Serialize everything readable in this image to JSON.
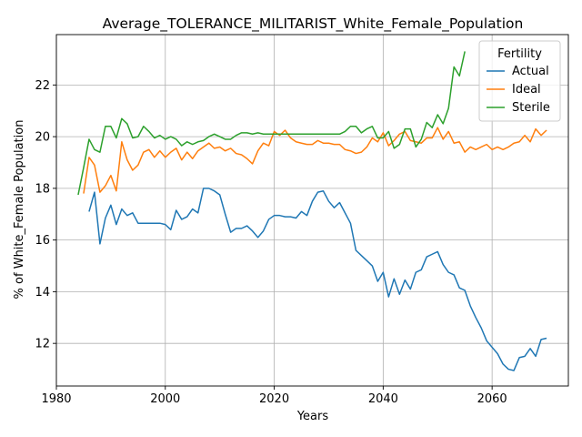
{
  "chart_data": {
    "type": "line",
    "title": "Average_TOLERANCE_MILITARIST_White_Female_Population",
    "xlabel": "Years",
    "ylabel": "% of White_Female Population",
    "xlim": [
      1980,
      2074
    ],
    "ylim": [
      10.35,
      23.95
    ],
    "xticks": [
      1980,
      2000,
      2020,
      2040,
      2060
    ],
    "yticks": [
      12,
      14,
      16,
      18,
      20,
      22
    ],
    "grid": true,
    "legend": {
      "title": "Fertility",
      "placement": "top-right"
    },
    "series": [
      {
        "name": "Actual",
        "color": "#1f77b4",
        "x": [
          1986,
          1987,
          1988,
          1989,
          1990,
          1991,
          1992,
          1993,
          1994,
          1995,
          1996,
          1997,
          1998,
          1999,
          2000,
          2001,
          2002,
          2003,
          2004,
          2005,
          2006,
          2007,
          2008,
          2009,
          2010,
          2011,
          2012,
          2013,
          2014,
          2015,
          2016,
          2017,
          2018,
          2019,
          2020,
          2021,
          2022,
          2023,
          2024,
          2025,
          2026,
          2027,
          2028,
          2029,
          2030,
          2031,
          2032,
          2033,
          2034,
          2035,
          2036,
          2037,
          2038,
          2039,
          2040,
          2041,
          2042,
          2043,
          2044,
          2045,
          2046,
          2047,
          2048,
          2049,
          2050,
          2051,
          2052,
          2053,
          2054,
          2055,
          2056,
          2057,
          2058,
          2059,
          2060,
          2061,
          2062,
          2063,
          2064,
          2065,
          2066,
          2067,
          2068,
          2069,
          2070
        ],
        "values": [
          17.1,
          17.85,
          15.85,
          16.85,
          17.35,
          16.6,
          17.2,
          16.95,
          17.05,
          16.65,
          16.65,
          16.65,
          16.65,
          16.65,
          16.6,
          16.4,
          17.15,
          16.8,
          16.9,
          17.2,
          17.05,
          18.0,
          18.0,
          17.9,
          17.75,
          17.0,
          16.3,
          16.45,
          16.45,
          16.55,
          16.35,
          16.1,
          16.35,
          16.8,
          16.95,
          16.95,
          16.9,
          16.9,
          16.85,
          17.1,
          16.95,
          17.5,
          17.85,
          17.9,
          17.5,
          17.25,
          17.45,
          17.05,
          16.65,
          15.6,
          15.4,
          15.2,
          15.0,
          14.4,
          14.75,
          13.8,
          14.5,
          13.9,
          14.45,
          14.1,
          14.75,
          14.85,
          15.35,
          15.45,
          15.55,
          15.05,
          14.75,
          14.65,
          14.15,
          14.05,
          13.45,
          13.0,
          12.6,
          12.1,
          11.85,
          11.6,
          11.2,
          11.0,
          10.95,
          11.45,
          11.5,
          11.8,
          11.5,
          12.15,
          12.2
        ]
      },
      {
        "name": "Ideal",
        "color": "#ff7f0e",
        "x": [
          1985,
          1986,
          1987,
          1988,
          1989,
          1990,
          1991,
          1992,
          1993,
          1994,
          1995,
          1996,
          1997,
          1998,
          1999,
          2000,
          2001,
          2002,
          2003,
          2004,
          2005,
          2006,
          2007,
          2008,
          2009,
          2010,
          2011,
          2012,
          2013,
          2014,
          2015,
          2016,
          2017,
          2018,
          2019,
          2020,
          2021,
          2022,
          2023,
          2024,
          2025,
          2026,
          2027,
          2028,
          2029,
          2030,
          2031,
          2032,
          2033,
          2034,
          2035,
          2036,
          2037,
          2038,
          2039,
          2040,
          2041,
          2042,
          2043,
          2044,
          2045,
          2046,
          2047,
          2048,
          2049,
          2050,
          2051,
          2052,
          2053,
          2054,
          2055,
          2056,
          2057,
          2058,
          2059,
          2060,
          2061,
          2062,
          2063,
          2064,
          2065,
          2066,
          2067,
          2068,
          2069,
          2070
        ],
        "values": [
          17.8,
          19.2,
          18.9,
          17.85,
          18.1,
          18.5,
          17.9,
          19.8,
          19.1,
          18.7,
          18.9,
          19.4,
          19.5,
          19.2,
          19.45,
          19.2,
          19.4,
          19.55,
          19.1,
          19.4,
          19.15,
          19.45,
          19.6,
          19.75,
          19.55,
          19.6,
          19.45,
          19.55,
          19.35,
          19.3,
          19.15,
          18.95,
          19.45,
          19.75,
          19.65,
          20.2,
          20.05,
          20.25,
          19.95,
          19.8,
          19.75,
          19.7,
          19.7,
          19.85,
          19.75,
          19.75,
          19.7,
          19.7,
          19.5,
          19.45,
          19.35,
          19.4,
          19.6,
          19.95,
          19.8,
          20.15,
          19.65,
          19.85,
          20.1,
          20.2,
          19.85,
          19.8,
          19.75,
          19.95,
          19.95,
          20.35,
          19.9,
          20.2,
          19.75,
          19.8,
          19.4,
          19.6,
          19.5,
          19.6,
          19.7,
          19.5,
          19.6,
          19.5,
          19.6,
          19.75,
          19.8,
          20.05,
          19.8,
          20.3,
          20.05,
          20.25
        ]
      },
      {
        "name": "Sterile",
        "color": "#2ca02c",
        "x": [
          1984,
          1985,
          1986,
          1987,
          1988,
          1989,
          1990,
          1991,
          1992,
          1993,
          1994,
          1995,
          1996,
          1997,
          1998,
          1999,
          2000,
          2001,
          2002,
          2003,
          2004,
          2005,
          2006,
          2007,
          2008,
          2009,
          2010,
          2011,
          2012,
          2013,
          2014,
          2015,
          2016,
          2017,
          2018,
          2019,
          2020,
          2021,
          2022,
          2023,
          2024,
          2025,
          2026,
          2027,
          2028,
          2029,
          2030,
          2031,
          2032,
          2033,
          2034,
          2035,
          2036,
          2037,
          2038,
          2039,
          2040,
          2041,
          2042,
          2043,
          2044,
          2045,
          2046,
          2047,
          2048,
          2049,
          2050,
          2051,
          2052,
          2053,
          2054,
          2055
        ],
        "values": [
          17.75,
          18.8,
          19.9,
          19.5,
          19.4,
          20.4,
          20.4,
          19.95,
          20.7,
          20.5,
          19.95,
          20.0,
          20.4,
          20.2,
          19.95,
          20.05,
          19.9,
          20.0,
          19.9,
          19.65,
          19.8,
          19.7,
          19.8,
          19.85,
          20.0,
          20.1,
          20.0,
          19.9,
          19.9,
          20.05,
          20.15,
          20.15,
          20.1,
          20.15,
          20.1,
          20.1,
          20.1,
          20.1,
          20.1,
          20.1,
          20.1,
          20.1,
          20.1,
          20.1,
          20.1,
          20.1,
          20.1,
          20.1,
          20.1,
          20.2,
          20.4,
          20.4,
          20.15,
          20.3,
          20.4,
          19.95,
          19.95,
          20.2,
          19.55,
          19.7,
          20.3,
          20.3,
          19.6,
          19.9,
          20.55,
          20.35,
          20.85,
          20.5,
          21.1,
          22.7,
          22.35,
          23.3
        ]
      }
    ]
  }
}
